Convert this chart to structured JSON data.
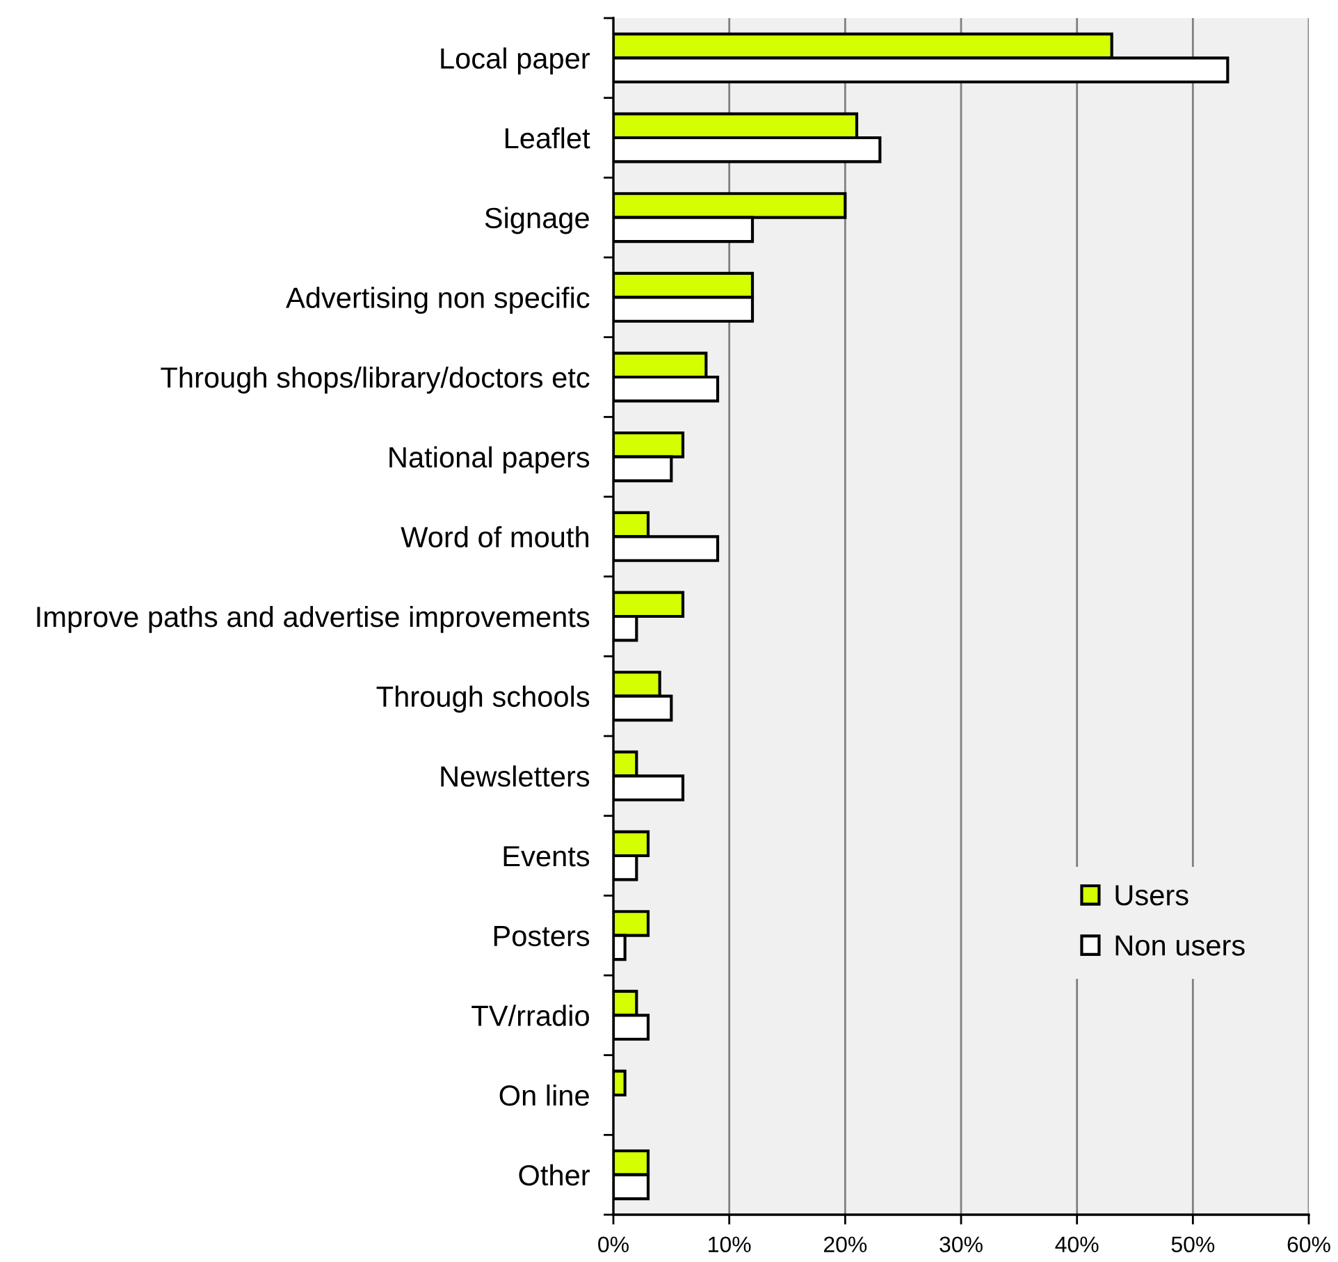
{
  "chart_data": {
    "type": "bar",
    "orientation": "horizontal",
    "categories": [
      "Local paper",
      "Leaflet",
      "Signage",
      "Advertising non specific",
      "Through shops/library/doctors etc",
      "National papers",
      "Word of mouth",
      "Improve paths and advertise improvements",
      "Through schools",
      "Newsletters",
      "Events",
      "Posters",
      "TV/rradio",
      "On line",
      "Other"
    ],
    "series": [
      {
        "name": "Users",
        "color": "#d4ff00",
        "values": [
          43,
          21,
          20,
          12,
          8,
          6,
          3,
          6,
          4,
          2,
          3,
          3,
          2,
          1,
          3
        ]
      },
      {
        "name": "Non users",
        "color": "#ffffff",
        "values": [
          53,
          23,
          12,
          12,
          9,
          5,
          9,
          2,
          5,
          6,
          2,
          1,
          3,
          null,
          3
        ]
      }
    ],
    "xlim": [
      0,
      60
    ],
    "xticks": [
      {
        "value": 0,
        "label": "0%"
      },
      {
        "value": 10,
        "label": "10%"
      },
      {
        "value": 20,
        "label": "20%"
      },
      {
        "value": 30,
        "label": "30%"
      },
      {
        "value": 40,
        "label": "40%"
      },
      {
        "value": 50,
        "label": "50%"
      },
      {
        "value": 60,
        "label": "60%"
      }
    ],
    "grid": "x",
    "legend": "bottom right"
  }
}
